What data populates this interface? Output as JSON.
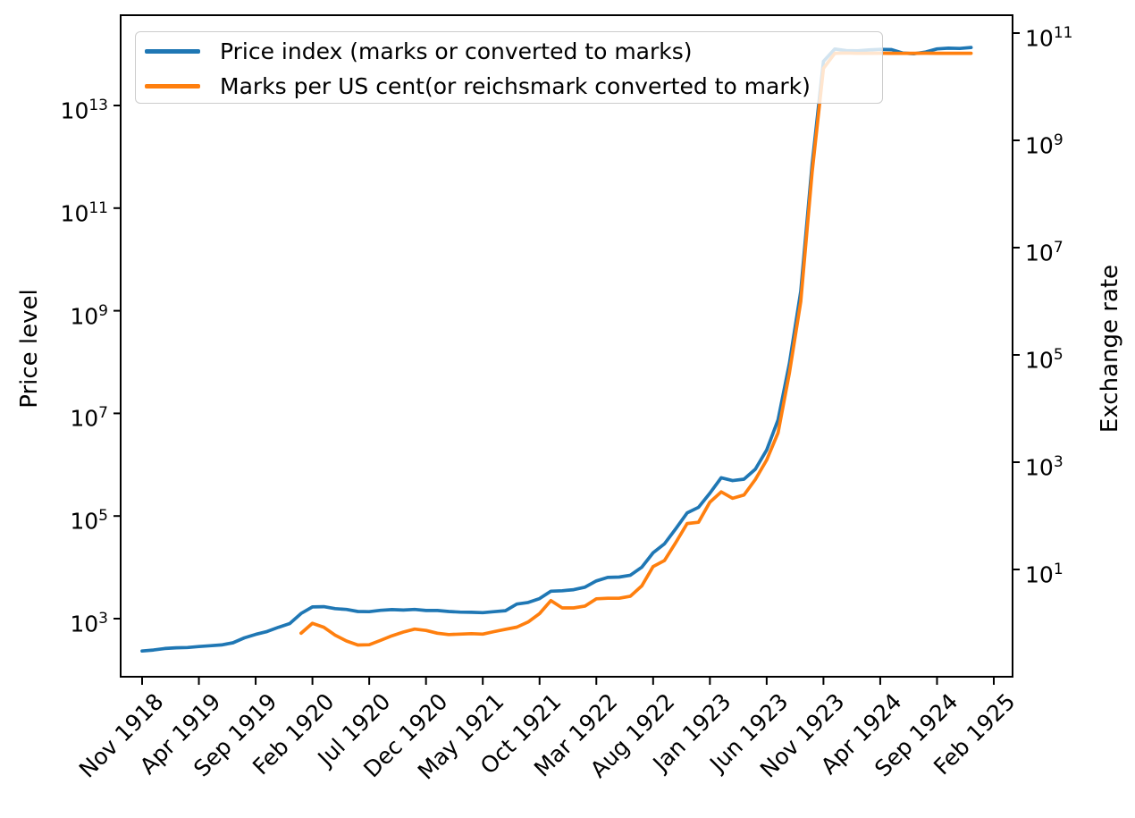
{
  "figure": {
    "background": "#ffffff"
  },
  "legend": {
    "position": "upper left",
    "items": [
      {
        "label": "Price index (marks or converted to marks)",
        "color": "#1f77b4"
      },
      {
        "label": "Marks per US cent(or reichsmark converted to mark)",
        "color": "#ff7f0e"
      }
    ]
  },
  "axes": {
    "left": {
      "label": "Price level",
      "tick_exponents": [
        3,
        5,
        7,
        9,
        11,
        13
      ]
    },
    "right": {
      "label": "Exchange rate",
      "tick_exponents": [
        1,
        3,
        5,
        7,
        9,
        11
      ]
    },
    "x": {
      "tick_labels": [
        "Nov 1918",
        "Apr 1919",
        "Sep 1919",
        "Feb 1920",
        "Jul 1920",
        "Dec 1920",
        "May 1921",
        "Oct 1921",
        "Mar 1922",
        "Aug 1922",
        "Jan 1923",
        "Jun 1923",
        "Nov 1923",
        "Apr 1924",
        "Sep 1924",
        "Feb 1925"
      ],
      "tick_month_offsets": [
        0,
        5,
        10,
        15,
        20,
        25,
        30,
        35,
        40,
        45,
        50,
        55,
        60,
        65,
        70,
        75
      ]
    }
  },
  "chart_data": {
    "type": "line",
    "title": "",
    "x_unit": "month",
    "x_range": [
      "Nov 1918",
      "Feb 1925"
    ],
    "grid": false,
    "legend_position": "upper left",
    "y_left": {
      "label": "Price level",
      "scale": "log",
      "ticks": [
        1000.0,
        100000.0,
        10000000.0,
        1000000000.0,
        100000000000.0,
        10000000000000.0
      ],
      "approx_range": [
        74,
        580000000000000.0
      ]
    },
    "y_right": {
      "label": "Exchange rate",
      "scale": "log",
      "ticks": [
        10,
        1000.0,
        100000.0,
        10000000.0,
        1000000000.0,
        100000000000.0
      ],
      "approx_range": [
        0.1,
        210000000000.0
      ]
    },
    "series": [
      {
        "name": "Price index (marks or converted to marks)",
        "axis": "left",
        "color": "#1f77b4",
        "start": "Nov 1918",
        "start_month_offset": 0,
        "values": [
          234,
          245,
          262,
          270,
          274,
          286,
          297,
          308,
          339,
          422,
          493,
          562,
          678,
          803,
          1260,
          1690,
          1710,
          1570,
          1510,
          1380,
          1370,
          1450,
          1500,
          1470,
          1510,
          1440,
          1440,
          1380,
          1340,
          1330,
          1310,
          1370,
          1430,
          1920,
          2070,
          2460,
          3420,
          3490,
          3670,
          4100,
          5430,
          6360,
          6460,
          7030,
          10060,
          19200,
          28700,
          56600,
          115100,
          147480,
          278500,
          555700,
          488800,
          521200,
          817000,
          1938500,
          7478700,
          94404100,
          2394889300,
          709480000000,
          72570000000000,
          126160000000000,
          117320000000000,
          116170000000000,
          120670000000000,
          124050000000000,
          122460000000000,
          105000000000000,
          102000000000000,
          110000000000000,
          126890000000000,
          130900000000000,
          129200000000000,
          135000000000000
        ]
      },
      {
        "name": "Marks per US cent(or reichsmark converted to mark)",
        "axis": "right",
        "color": "#ff7f0e",
        "start": "Jan 1920",
        "start_month_offset": 14,
        "values": [
          0.648,
          0.991,
          0.839,
          0.596,
          0.465,
          0.391,
          0.395,
          0.476,
          0.579,
          0.682,
          0.772,
          0.73,
          0.649,
          0.613,
          0.624,
          0.635,
          0.623,
          0.694,
          0.767,
          0.843,
          1.05,
          1.5,
          2.63,
          1.92,
          1.918,
          2.078,
          2.842,
          2.91,
          2.901,
          3.174,
          4.932,
          11.346,
          14.659,
          31.808,
          71.831,
          75.893,
          179.7,
          279.2,
          211.9,
          244.6,
          476.7,
          1100,
          3534,
          46205,
          988600,
          252600000,
          21936000000,
          42000000000,
          42500000000,
          41800000000,
          42000000000,
          42200000000,
          42000000000,
          41900000000,
          42000000000,
          42100000000,
          42000000000,
          42000000000,
          42000000000,
          42000000000
        ]
      }
    ]
  }
}
